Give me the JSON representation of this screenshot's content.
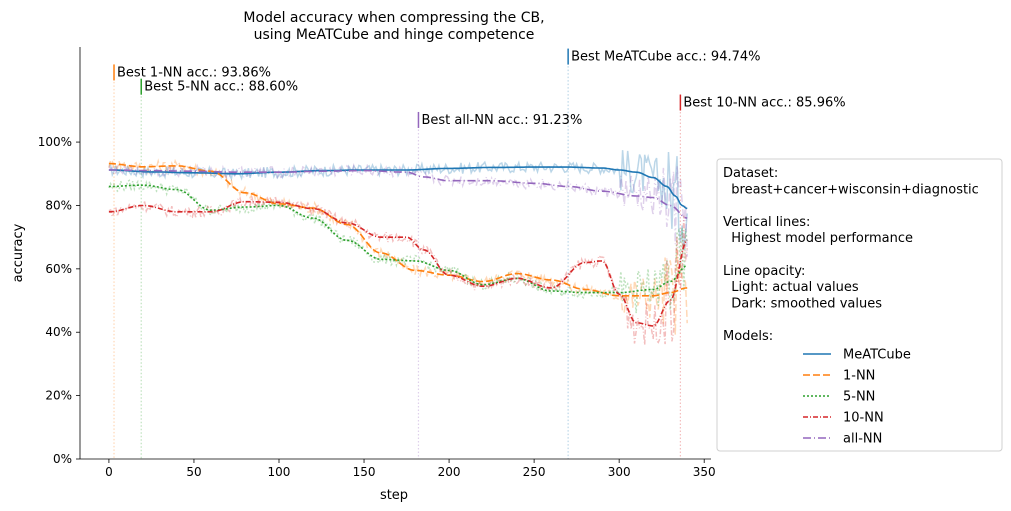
{
  "chart_data": {
    "type": "line",
    "title": "Model accuracy when compressing the CB,\nusing MeATCube and hinge competence",
    "xlabel": "step",
    "ylabel": "accuracy",
    "xlim": [
      -17,
      354
    ],
    "ylim": [
      0,
      1.3
    ],
    "x_ticks": [
      0,
      50,
      100,
      150,
      200,
      250,
      300,
      350
    ],
    "y_ticks": [
      0,
      0.2,
      0.4,
      0.6,
      0.8,
      1.0
    ],
    "y_tick_labels": [
      "0%",
      "20%",
      "40%",
      "60%",
      "80%",
      "100%"
    ],
    "legend_position": "right",
    "legend_text": [
      "Dataset:",
      "  breast+cancer+wisconsin+diagnostic",
      "",
      "Vertical lines:",
      "  Highest model performance",
      "",
      "Line opacity:",
      "  Light: actual values",
      "  Dark: smoothed values",
      "",
      "Models:"
    ],
    "series": [
      {
        "name": "MeATCube",
        "color": "#1f77b4",
        "dash": "",
        "x": [
          0,
          25,
          50,
          75,
          100,
          125,
          150,
          175,
          200,
          225,
          250,
          270,
          290,
          300,
          310,
          320,
          328,
          333,
          337,
          340
        ],
        "y": [
          0.912,
          0.906,
          0.903,
          0.9,
          0.905,
          0.91,
          0.912,
          0.912,
          0.917,
          0.92,
          0.921,
          0.921,
          0.918,
          0.912,
          0.905,
          0.888,
          0.86,
          0.83,
          0.8,
          0.79
        ],
        "best_x": 270,
        "best_label": "Best MeATCube acc.: 94.74%",
        "best_top": 1.295
      },
      {
        "name": "1-NN",
        "color": "#ff7f0e",
        "dash": "7,3",
        "x": [
          0,
          20,
          40,
          60,
          80,
          100,
          120,
          140,
          160,
          180,
          200,
          220,
          240,
          260,
          280,
          300,
          320,
          330,
          340
        ],
        "y": [
          0.932,
          0.922,
          0.925,
          0.908,
          0.84,
          0.805,
          0.792,
          0.74,
          0.65,
          0.595,
          0.58,
          0.56,
          0.585,
          0.565,
          0.535,
          0.515,
          0.515,
          0.525,
          0.54
        ],
        "best_x": 3,
        "best_label": "Best 1-NN acc.: 93.86%",
        "best_top": 1.245
      },
      {
        "name": "5-NN",
        "color": "#2ca02c",
        "dash": "2,2",
        "x": [
          0,
          20,
          40,
          60,
          80,
          100,
          120,
          140,
          160,
          180,
          200,
          220,
          240,
          260,
          280,
          300,
          320,
          330,
          340
        ],
        "y": [
          0.86,
          0.864,
          0.85,
          0.785,
          0.795,
          0.8,
          0.76,
          0.69,
          0.63,
          0.625,
          0.595,
          0.55,
          0.57,
          0.53,
          0.525,
          0.525,
          0.535,
          0.56,
          0.61
        ],
        "best_x": 19,
        "best_label": "Best 5-NN acc.: 88.60%",
        "best_top": 1.2
      },
      {
        "name": "10-NN",
        "color": "#d62728",
        "dash": "5,2,1,2",
        "x": [
          0,
          20,
          40,
          60,
          80,
          100,
          120,
          140,
          160,
          175,
          185,
          200,
          220,
          240,
          260,
          280,
          290,
          300,
          310,
          320,
          330,
          340
        ],
        "y": [
          0.78,
          0.8,
          0.78,
          0.78,
          0.812,
          0.81,
          0.79,
          0.745,
          0.7,
          0.7,
          0.66,
          0.58,
          0.545,
          0.57,
          0.54,
          0.62,
          0.625,
          0.52,
          0.43,
          0.42,
          0.5,
          0.69
        ],
        "best_x": 336,
        "best_label": "Best 10-NN acc.: 85.96%",
        "best_top": 1.15
      },
      {
        "name": "all-NN",
        "color": "#9467bd",
        "dash": "8,3,1,3",
        "x": [
          0,
          25,
          50,
          75,
          100,
          125,
          150,
          175,
          185,
          200,
          225,
          250,
          270,
          290,
          310,
          320,
          330,
          340
        ],
        "y": [
          0.912,
          0.91,
          0.908,
          0.905,
          0.905,
          0.908,
          0.91,
          0.905,
          0.89,
          0.878,
          0.878,
          0.87,
          0.86,
          0.845,
          0.83,
          0.825,
          0.8,
          0.76
        ],
        "best_x": 182,
        "best_label": "Best all-NN acc.: 91.23%",
        "best_top": 1.095
      }
    ]
  }
}
